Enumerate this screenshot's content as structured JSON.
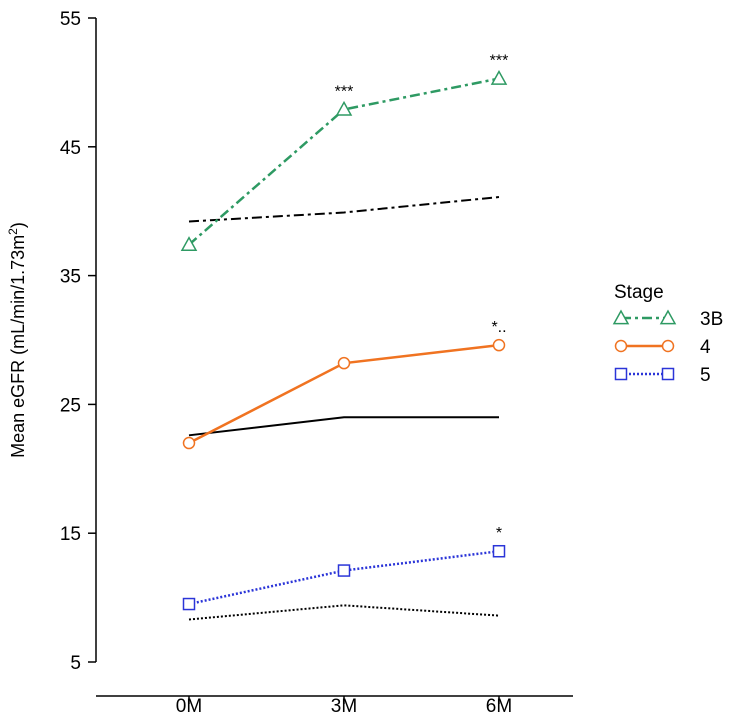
{
  "chart_data": {
    "type": "line",
    "title": "",
    "xlabel": "",
    "ylabel": "Mean eGFR (mL/min/1.73m",
    "ylabel_sup": "2",
    "ylabel_close": ")",
    "ylim": [
      5,
      55
    ],
    "yticks": [
      "5",
      "15",
      "25",
      "35",
      "45",
      "55"
    ],
    "categories": [
      "0M",
      "3M",
      "6M"
    ],
    "legend": {
      "title": "Stage",
      "placement": "right"
    },
    "series": [
      {
        "name": "3B",
        "values": [
          37.4,
          47.9,
          50.3
        ],
        "color": "#2e9a63",
        "style": "dashdot",
        "marker": "triangle",
        "annotations": [
          "",
          "***",
          "***"
        ]
      },
      {
        "name": "4",
        "values": [
          22.0,
          28.2,
          29.6
        ],
        "color": "#f07321",
        "style": "solid",
        "marker": "circle",
        "annotations": [
          "",
          "",
          "*.."
        ]
      },
      {
        "name": "5",
        "values": [
          9.5,
          12.1,
          13.6
        ],
        "color": "#2b35d8",
        "style": "dotted",
        "marker": "square",
        "annotations": [
          "",
          "",
          "*"
        ]
      }
    ],
    "reference_lines": [
      {
        "values": [
          39.2,
          39.9,
          41.1
        ],
        "color": "#000000",
        "style": "dashdot"
      },
      {
        "values": [
          22.6,
          24.0,
          24.0
        ],
        "color": "#000000",
        "style": "solid"
      },
      {
        "values": [
          8.3,
          9.4,
          8.6
        ],
        "color": "#000000",
        "style": "dotted"
      }
    ]
  }
}
